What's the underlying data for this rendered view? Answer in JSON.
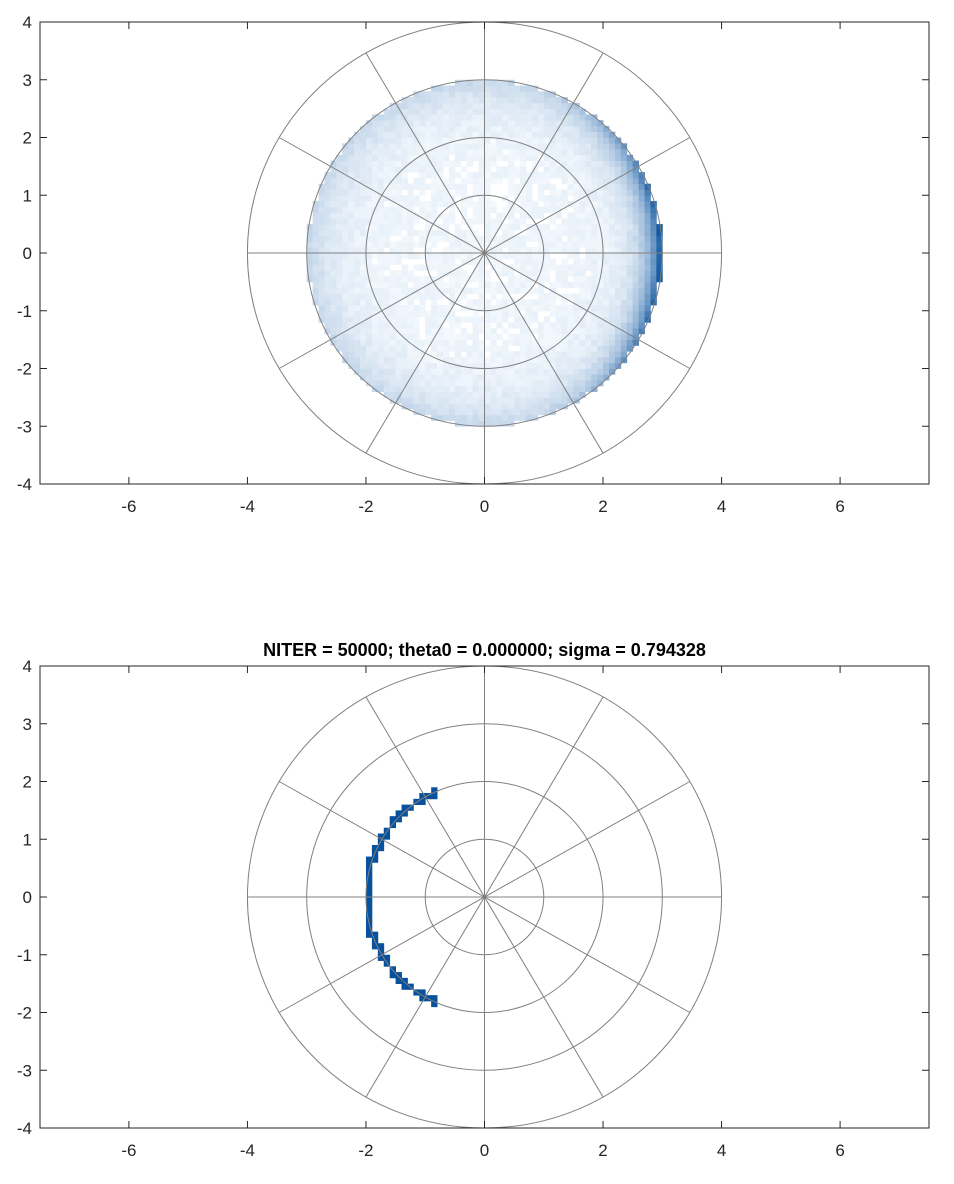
{
  "chart_data": [
    {
      "type": "heatmap",
      "title": "",
      "xlabel": "",
      "ylabel": "",
      "xlim": [
        -7.5,
        7.5
      ],
      "ylim": [
        -4,
        4
      ],
      "x_ticks": [
        "-6",
        "-4",
        "-2",
        "0",
        "2",
        "4",
        "6"
      ],
      "x_tick_values": [
        -6,
        -4,
        -2,
        0,
        2,
        4,
        6
      ],
      "y_ticks": [
        "4",
        "3",
        "2",
        "1",
        "0",
        "-1",
        "-2",
        "-3",
        "-4"
      ],
      "y_tick_values": [
        4,
        3,
        2,
        1,
        0,
        -1,
        -2,
        -3,
        -4
      ],
      "polar_grid": {
        "radii": [
          1,
          2,
          3,
          4
        ],
        "spoke_angles_deg": [
          0,
          30,
          60,
          90,
          120,
          150
        ]
      },
      "colormap": "white-to-blue",
      "distribution": {
        "description_type": "disk density",
        "radius": 3.0,
        "peak_angle_deg": 0,
        "bin_size": 0.1
      }
    },
    {
      "type": "heatmap",
      "title": "NITER = 50000; theta0 = 0.000000; sigma = 0.794328",
      "xlabel": "",
      "ylabel": "",
      "xlim": [
        -7.5,
        7.5
      ],
      "ylim": [
        -4,
        4
      ],
      "x_ticks": [
        "-6",
        "-4",
        "-2",
        "0",
        "2",
        "4",
        "6"
      ],
      "x_tick_values": [
        -6,
        -4,
        -2,
        0,
        2,
        4,
        6
      ],
      "y_ticks": [
        "4",
        "3",
        "2",
        "1",
        "0",
        "-1",
        "-2",
        "-3",
        "-4"
      ],
      "y_tick_values": [
        4,
        3,
        2,
        1,
        0,
        -1,
        -2,
        -3,
        -4
      ],
      "polar_grid": {
        "radii": [
          1,
          2,
          3,
          4
        ],
        "spoke_angles_deg": [
          0,
          30,
          60,
          90,
          120,
          150
        ]
      },
      "colormap": "white-to-blue",
      "distribution": {
        "description_type": "arc",
        "radius": 2.0,
        "peak_angle_deg": 180,
        "half_span_deg": 65,
        "bin_size": 0.1
      }
    }
  ],
  "colors": {
    "low": "#f7fbff",
    "high": "#08519c",
    "grid": "#808080",
    "axes": "#262626"
  }
}
